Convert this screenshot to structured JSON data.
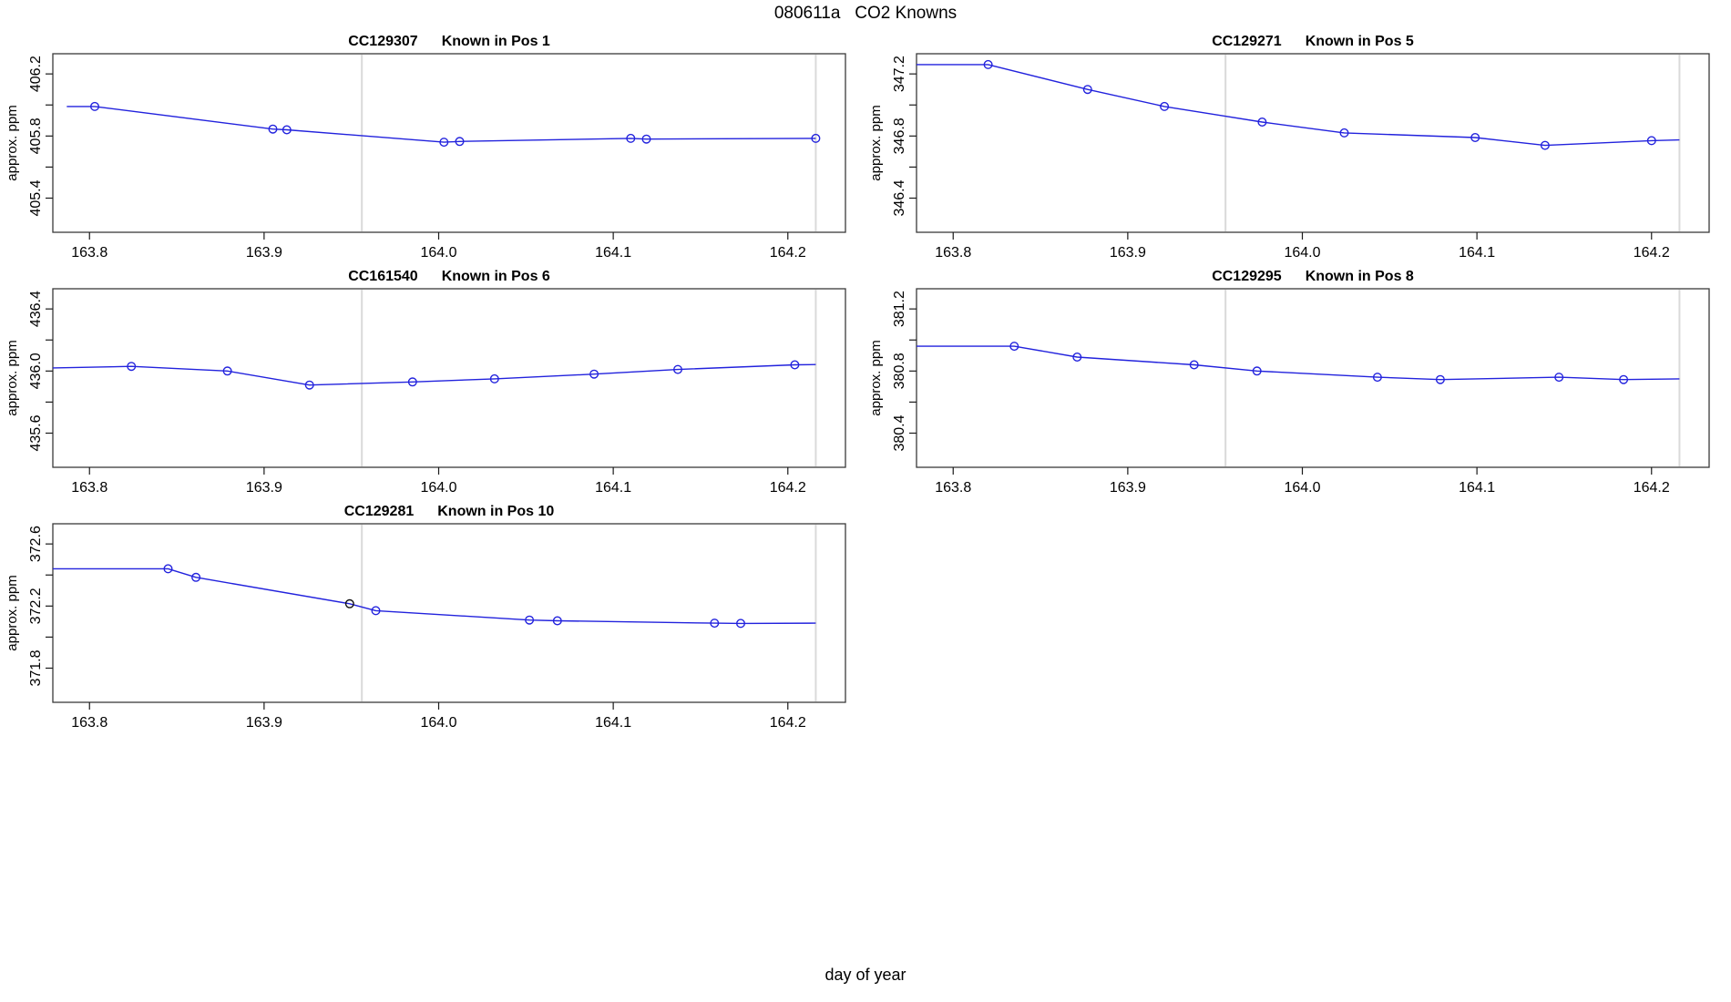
{
  "title": "080611a   CO2 Knowns",
  "xlabel": "day of year",
  "ylabel": "approx. ppm",
  "colors": {
    "series_blue": "#2222dd",
    "outlier_black": "#111111",
    "vline_gray": "#dadada",
    "frame": "#3a3a3a",
    "tick": "#1a1a1a",
    "text": "#000000",
    "background": "#ffffff"
  },
  "axis": {
    "xlim": [
      163.779,
      164.233
    ],
    "xticks": [
      163.8,
      163.9,
      164.0,
      164.1,
      164.2
    ],
    "xtick_labels": [
      "163.8",
      "163.9",
      "164.0",
      "164.1",
      "164.2"
    ],
    "vlines": [
      163.956,
      164.216
    ]
  },
  "chart_data": [
    {
      "type": "line",
      "id": "CC129307",
      "pos_label": "Known in Pos 1",
      "grid_cell": [
        0,
        0
      ],
      "ylim": [
        405.18,
        406.33
      ],
      "yticks": [
        405.4,
        405.6,
        405.8,
        406.0,
        406.2
      ],
      "ytick_labels": [
        "405.4",
        "",
        "405.8",
        "",
        "406.2"
      ],
      "lead_in": [
        163.787,
        405.99
      ],
      "x": [
        163.803,
        163.905,
        163.913,
        164.003,
        164.012,
        164.11,
        164.119,
        164.216
      ],
      "y": [
        405.99,
        405.845,
        405.84,
        405.76,
        405.765,
        405.785,
        405.78,
        405.785
      ],
      "tail": null,
      "outlier_index": null
    },
    {
      "type": "line",
      "id": "CC129271",
      "pos_label": "Known in Pos 5",
      "grid_cell": [
        0,
        1
      ],
      "ylim": [
        346.18,
        347.33
      ],
      "yticks": [
        346.4,
        346.6,
        346.8,
        347.0,
        347.2
      ],
      "ytick_labels": [
        "346.4",
        "",
        "346.8",
        "",
        "347.2"
      ],
      "lead_in": [
        163.779,
        347.26
      ],
      "x": [
        163.82,
        163.877,
        163.921,
        163.977,
        164.024,
        164.099,
        164.139,
        164.2
      ],
      "y": [
        347.26,
        347.1,
        346.99,
        346.89,
        346.82,
        346.79,
        346.74,
        346.77
      ],
      "tail": [
        164.216,
        346.775
      ],
      "outlier_index": null
    },
    {
      "type": "line",
      "id": "CC161540",
      "pos_label": "Known in Pos 6",
      "grid_cell": [
        1,
        0
      ],
      "ylim": [
        435.38,
        436.53
      ],
      "yticks": [
        435.6,
        435.8,
        436.0,
        436.2,
        436.4
      ],
      "ytick_labels": [
        "435.6",
        "",
        "436.0",
        "",
        "436.4"
      ],
      "lead_in": [
        163.779,
        436.02
      ],
      "x": [
        163.824,
        163.879,
        163.926,
        163.985,
        164.032,
        164.089,
        164.137,
        164.204
      ],
      "y": [
        436.03,
        436.0,
        435.91,
        435.93,
        435.95,
        435.98,
        436.01,
        436.04
      ],
      "tail": [
        164.216,
        436.042
      ],
      "outlier_index": null
    },
    {
      "type": "line",
      "id": "CC129295",
      "pos_label": "Known in Pos 8",
      "grid_cell": [
        1,
        1
      ],
      "ylim": [
        380.18,
        381.33
      ],
      "yticks": [
        380.4,
        380.6,
        380.8,
        381.0,
        381.2
      ],
      "ytick_labels": [
        "380.4",
        "",
        "380.8",
        "",
        "381.2"
      ],
      "lead_in": [
        163.779,
        380.96
      ],
      "x": [
        163.835,
        163.871,
        163.938,
        163.974,
        164.043,
        164.079,
        164.147,
        164.184
      ],
      "y": [
        380.96,
        380.89,
        380.84,
        380.8,
        380.76,
        380.745,
        380.76,
        380.745
      ],
      "tail": [
        164.216,
        380.75
      ],
      "outlier_index": null
    },
    {
      "type": "line",
      "id": "CC129281",
      "pos_label": "Known in Pos 10",
      "grid_cell": [
        2,
        0
      ],
      "ylim": [
        371.58,
        372.73
      ],
      "yticks": [
        371.8,
        372.0,
        372.2,
        372.4,
        372.6
      ],
      "ytick_labels": [
        "371.8",
        "",
        "372.2",
        "",
        "372.6"
      ],
      "lead_in": [
        163.779,
        372.44
      ],
      "x": [
        163.845,
        163.861,
        163.949,
        163.964,
        164.052,
        164.068,
        164.158,
        164.173
      ],
      "y": [
        372.44,
        372.385,
        372.215,
        372.17,
        372.11,
        372.105,
        372.09,
        372.088
      ],
      "tail": [
        164.216,
        372.09
      ],
      "outlier_index": 2
    }
  ],
  "layout_note": "3 rows x 2 cols, bottom-right cell empty"
}
